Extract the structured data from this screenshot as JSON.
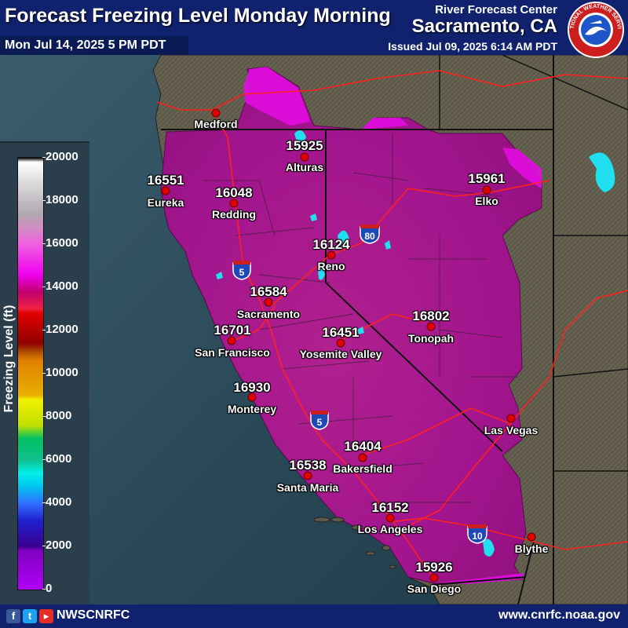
{
  "header": {
    "title": "Forecast Freezing Level Monday Morning",
    "valid_time": "Mon Jul 14, 2025 5 PM PDT",
    "center_label": "River Forecast Center",
    "office": "Sacramento, CA",
    "issued": "Issued Jul 09, 2025 6:14 AM PDT",
    "logo_text": "NATIONAL WEATHER SERVICE"
  },
  "legend": {
    "axis_label": "Freezing Level (ft)",
    "ticks": [
      "20000",
      "18000",
      "16000",
      "14000",
      "12000",
      "10000",
      "8000",
      "6000",
      "4000",
      "2000",
      "0"
    ]
  },
  "highways": [
    "5",
    "80",
    "5",
    "10"
  ],
  "cities": [
    {
      "name": "Medford",
      "value": ""
    },
    {
      "name": "Alturas",
      "value": "15925"
    },
    {
      "name": "Eureka",
      "value": "16551"
    },
    {
      "name": "Redding",
      "value": "16048"
    },
    {
      "name": "Elko",
      "value": "15961"
    },
    {
      "name": "Reno",
      "value": "16124"
    },
    {
      "name": "Sacramento",
      "value": "16584"
    },
    {
      "name": "San Francisco",
      "value": "16701"
    },
    {
      "name": "Yosemite Valley",
      "value": "16451"
    },
    {
      "name": "Tonopah",
      "value": "16802"
    },
    {
      "name": "Monterey",
      "value": "16930"
    },
    {
      "name": "Las Vegas",
      "value": ""
    },
    {
      "name": "Bakersfield",
      "value": "16404"
    },
    {
      "name": "Santa Maria",
      "value": "16538"
    },
    {
      "name": "Los Angeles",
      "value": "16152"
    },
    {
      "name": "Blythe",
      "value": ""
    },
    {
      "name": "San Diego",
      "value": "15926"
    }
  ],
  "footer": {
    "handle": "NWSCNRFC",
    "website": "www.cnrfc.noaa.gov",
    "social_icons": [
      "facebook-icon",
      "twitter-icon",
      "youtube-icon"
    ]
  },
  "colors": {
    "header_bg": "#10226e",
    "ocean": "#2c4a5a",
    "forecast_fill": "#a3158e",
    "high_fill": "#e20ce0",
    "lake": "#20e0f0",
    "road": "#ff2020",
    "city_dot": "#e00000"
  }
}
